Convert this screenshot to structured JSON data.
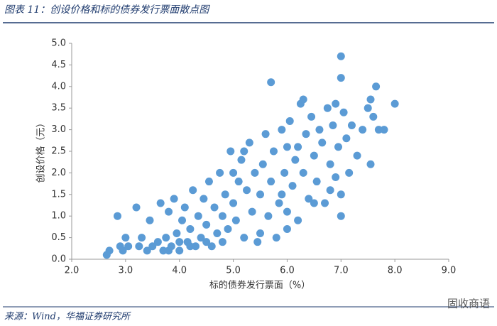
{
  "header": {
    "title": "图表 11：创设价格和标的债券发行票面散点图"
  },
  "chart_data": {
    "type": "scatter",
    "x_label": "标的债券发行票面（%）",
    "y_label": "创设价格（元）",
    "color": "#5b9bd5",
    "x": [
      2.65,
      2.7,
      2.85,
      2.9,
      2.95,
      3.0,
      3.05,
      3.2,
      3.25,
      3.3,
      3.4,
      3.45,
      3.5,
      3.6,
      3.65,
      3.7,
      3.75,
      3.8,
      3.85,
      3.9,
      3.95,
      4.0,
      4.05,
      4.1,
      4.15,
      4.2,
      4.25,
      4.3,
      4.35,
      4.4,
      4.45,
      4.5,
      4.55,
      4.6,
      4.65,
      4.7,
      4.75,
      4.8,
      4.85,
      4.9,
      4.95,
      5.0,
      5.05,
      5.1,
      5.15,
      5.2,
      5.25,
      5.3,
      5.35,
      5.4,
      5.45,
      5.5,
      5.55,
      5.6,
      5.65,
      5.7,
      5.7,
      5.75,
      5.8,
      5.85,
      5.9,
      5.95,
      6.0,
      6.0,
      6.05,
      6.1,
      6.15,
      6.2,
      6.25,
      6.3,
      6.35,
      6.4,
      6.45,
      6.5,
      6.55,
      6.6,
      6.65,
      6.7,
      6.75,
      6.8,
      6.85,
      6.9,
      6.95,
      7.0,
      7.0,
      7.0,
      7.05,
      7.1,
      7.15,
      7.2,
      7.3,
      7.4,
      7.5,
      7.55,
      7.6,
      7.65,
      7.7,
      7.8,
      7.55,
      8.0,
      6.0,
      5.5,
      6.5,
      7.0,
      6.8,
      4.0,
      3.8,
      4.2,
      4.5,
      5.0,
      5.2,
      6.2,
      6.9,
      6.3,
      4.8,
      5.9
    ],
    "values": [
      0.1,
      0.2,
      1.0,
      0.3,
      0.2,
      0.5,
      0.3,
      1.2,
      0.3,
      0.5,
      0.2,
      0.9,
      0.3,
      0.4,
      1.3,
      0.2,
      0.5,
      1.1,
      0.3,
      1.4,
      0.6,
      0.2,
      0.9,
      1.2,
      0.4,
      0.7,
      1.6,
      0.3,
      1.0,
      0.5,
      1.4,
      0.8,
      1.8,
      0.3,
      1.2,
      0.6,
      2.0,
      1.0,
      1.5,
      0.7,
      2.5,
      1.3,
      0.9,
      1.8,
      2.3,
      0.5,
      1.6,
      2.7,
      1.1,
      2.0,
      0.4,
      1.5,
      2.2,
      2.9,
      1.0,
      4.1,
      1.8,
      2.5,
      0.5,
      1.3,
      3.0,
      2.0,
      1.1,
      2.6,
      3.2,
      1.7,
      2.3,
      0.9,
      3.6,
      2.0,
      2.9,
      1.4,
      3.3,
      2.4,
      1.8,
      3.0,
      2.7,
      1.3,
      3.5,
      2.2,
      3.1,
      1.9,
      2.6,
      4.7,
      4.2,
      1.0,
      3.4,
      2.8,
      2.0,
      3.1,
      2.4,
      3.0,
      3.5,
      3.7,
      3.3,
      4.0,
      3.0,
      3.0,
      2.2,
      3.6,
      0.7,
      0.6,
      1.3,
      1.5,
      1.6,
      0.4,
      0.2,
      0.3,
      0.4,
      2.0,
      2.5,
      2.6,
      3.6,
      3.7,
      0.4,
      1.5
    ],
    "xlim": [
      2,
      9
    ],
    "xticks": [
      {
        "value": 2,
        "label": "2.0"
      },
      {
        "value": 3,
        "label": "3.0"
      },
      {
        "value": 4,
        "label": "4.0"
      },
      {
        "value": 5,
        "label": "5.0"
      },
      {
        "value": 6,
        "label": "6.0"
      },
      {
        "value": 7,
        "label": "7.0"
      },
      {
        "value": 8,
        "label": "8.0"
      },
      {
        "value": 9,
        "label": "9.0"
      }
    ],
    "ylim": [
      0,
      5
    ],
    "yticks": [
      {
        "value": 0,
        "label": "0.0"
      },
      {
        "value": 0.5,
        "label": "0.5"
      },
      {
        "value": 1,
        "label": "1.0"
      },
      {
        "value": 1.5,
        "label": "1.5"
      },
      {
        "value": 2,
        "label": "2.0"
      },
      {
        "value": 2.5,
        "label": "2.5"
      },
      {
        "value": 3,
        "label": "3.0"
      },
      {
        "value": 3.5,
        "label": "3.5"
      },
      {
        "value": 4,
        "label": "4.0"
      },
      {
        "value": 4.5,
        "label": "4.5"
      },
      {
        "value": 5,
        "label": "5.0"
      }
    ]
  },
  "footer": {
    "source": "来源：Wind，华福证券研究所",
    "watermark": "固收商语"
  }
}
